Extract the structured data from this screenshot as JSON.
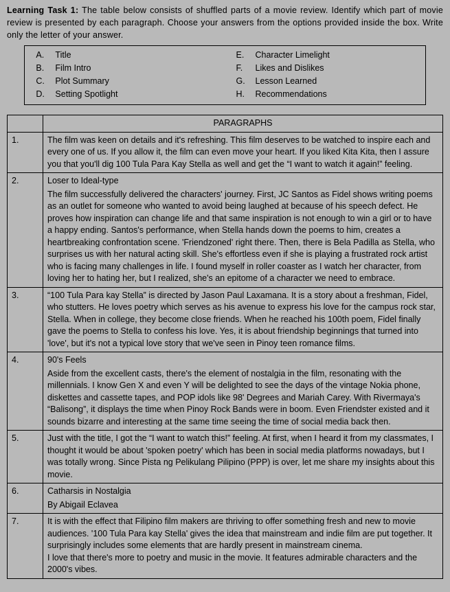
{
  "task": {
    "label": "Learning Task 1:",
    "instructions": "The table below consists of shuffled parts of a movie review. Identify which part of movie review is presented by each paragraph. Choose your answers from the options provided inside the box. Write only the letter of your answer."
  },
  "options": {
    "left": [
      {
        "letter": "A.",
        "text": "Title"
      },
      {
        "letter": "B.",
        "text": "Film Intro"
      },
      {
        "letter": "C.",
        "text": "Plot Summary"
      },
      {
        "letter": "D.",
        "text": "Setting Spotlight"
      }
    ],
    "right": [
      {
        "letter": "E.",
        "text": "Character Limelight"
      },
      {
        "letter": "F.",
        "text": "Likes and Dislikes"
      },
      {
        "letter": "G.",
        "text": "Lesson Learned"
      },
      {
        "letter": "H.",
        "text": "Recommendations"
      }
    ]
  },
  "paragraphs_header": "PARAGRAPHS",
  "paragraphs": [
    {
      "num": "1.",
      "heading": "",
      "text": "The film was keen on details and it's refreshing. This film deserves to be watched to inspire each and every one of us. If you allow it, the film can even move your heart. If you liked Kita Kita, then I assure you that you'll dig 100 Tula Para Kay Stella as well and get the “I want to watch it again!” feeling."
    },
    {
      "num": "2.",
      "heading": "Loser to Ideal-type",
      "text": "The film successfully delivered the characters' journey. First, JC Santos as Fidel shows writing poems as an outlet for someone who wanted to avoid being laughed at because of his speech defect. He proves how inspiration can change life and that same inspiration is not enough to win a girl or to have a happy ending. Santos's performance, when Stella hands down the poems to him, creates a heartbreaking confrontation scene. 'Friendzoned' right there. Then, there is Bela Padilla as Stella, who surprises us with her natural acting skill. She's effortless even if she is playing a frustrated rock artist who is facing many challenges in life. I found myself in roller coaster as I watch her character, from loving her to hating her, but I realized, she's an epitome of a character we need to embrace."
    },
    {
      "num": "3.",
      "heading": "",
      "text": "“100 Tula Para kay Stella” is directed by Jason Paul Laxamana. It is a story about a freshman, Fidel, who stutters. He loves poetry which serves as his avenue to express his love for the campus rock star, Stella. When in college, they become close friends. When he reached his 100th poem, Fidel finally gave the poems to Stella to confess his love. Yes, it is about friendship beginnings that turned into 'love', but it's not a typical love story that we've seen in Pinoy teen romance films."
    },
    {
      "num": "4.",
      "heading": "90's Feels",
      "text": "Aside from the excellent casts, there's the element of nostalgia in the film, resonating with the millennials. I know Gen X and even Y will be delighted to see the days of the vintage Nokia phone, diskettes and cassette tapes, and POP idols like 98' Degrees and Mariah Carey. With Rivermaya's “Balisong”, it displays the time when Pinoy Rock Bands were in boom. Even Friendster existed and it sounds bizarre and interesting at the same time seeing the time of social media back then."
    },
    {
      "num": "5.",
      "heading": "",
      "text": "Just with the title, I got the “I want to watch this!” feeling. At first, when I heard it from my classmates, I thought it would be about 'spoken poetry' which has been in social media platforms nowadays, but I was totally wrong. Since Pista ng Pelikulang Pilipino (PPP) is over, let me share my insights about this movie."
    },
    {
      "num": "6.",
      "heading": "Catharsis in Nostalgia",
      "text": "By Abigail Eclavea"
    },
    {
      "num": "7.",
      "heading": "",
      "text": "It is with the effect that Filipino film makers are thriving to offer something fresh and new to movie audiences. '100 Tula Para kay Stella' gives the idea that mainstream and indie film are put together. It surprisingly includes some elements that are hardly present in mainstream cinema.\nI love that there's more to poetry and music in the movie. It features admirable characters and the 2000's vibes."
    }
  ]
}
